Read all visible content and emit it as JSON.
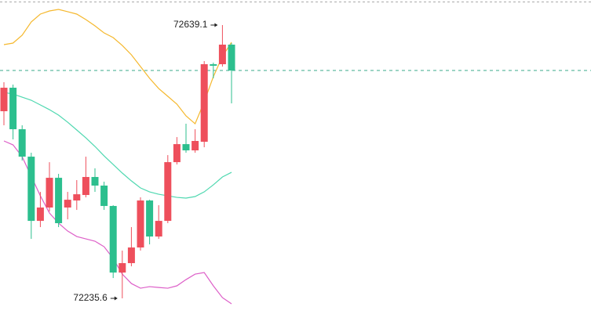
{
  "chart_data": {
    "type": "candlestick",
    "up_color": "#ee4f5c",
    "down_color": "#2cbf8e",
    "ylim": [
      72212.5,
      72676.1
    ],
    "open": [
      72511.9,
      72546.6,
      72485.3,
      72444.8,
      72350.0,
      72369.7,
      72413.6,
      72369.7,
      72380.1,
      72388.2,
      72414.8,
      72402.1,
      72372.0,
      72273.7,
      72287.6,
      72310.7,
      72380.1,
      72326.9,
      72350.0,
      72436.7,
      72463.3,
      72454.1,
      72466.8,
      72581.3,
      72581.3,
      72610.2
    ],
    "high": [
      72554.7,
      72551.2,
      72491.1,
      72450.6,
      72392.8,
      72436.7,
      72419.4,
      72392.8,
      72410.2,
      72444.8,
      72427.5,
      72407.8,
      72373.1,
      72306.1,
      72340.8,
      72384.7,
      72381.2,
      72373.1,
      72447.1,
      72473.7,
      72493.4,
      72485.3,
      72585.9,
      72583.6,
      72639.1,
      72612.5
    ],
    "low": [
      72491.1,
      72470.3,
      72439.1,
      72323.4,
      72340.8,
      72363.9,
      72340.8,
      72352.3,
      72366.2,
      72384.7,
      72392.8,
      72366.2,
      72265.6,
      72235.6,
      72282.9,
      72306.1,
      72315.3,
      72323.4,
      72346.6,
      72433.3,
      72450.6,
      72450.6,
      72458.7,
      72560.5,
      72577.8,
      72523.5
    ],
    "close": [
      72546.6,
      72485.3,
      72444.8,
      72350.0,
      72369.7,
      72413.6,
      72346.6,
      72381.2,
      72389.3,
      72414.8,
      72402.1,
      72372.0,
      72273.7,
      72287.6,
      72310.7,
      72380.1,
      72326.9,
      72350.0,
      72436.7,
      72463.3,
      72454.1,
      72468.0,
      72581.3,
      72579.0,
      72610.2,
      72572.0
    ],
    "lines": [
      {
        "color": "#f5b82e",
        "values": [
          72610.2,
          72612.5,
          72624.1,
          72643.7,
          72655.3,
          72659.9,
          72662.2,
          72658.8,
          72655.3,
          72647.2,
          72637.9,
          72627.5,
          72620.6,
          72609.0,
          72595.2,
          72577.8,
          72560.5,
          72545.4,
          72533.9,
          72522.3,
          72505.0,
          72493.4,
          72525.8,
          72562.8,
          72592.8,
          72613.7
        ]
      },
      {
        "color": "#4fd8b0",
        "values": [
          72539.7,
          72537.3,
          72532.7,
          72528.1,
          72521.2,
          72514.2,
          72506.1,
          72495.7,
          72484.2,
          72472.6,
          72459.9,
          72446.0,
          72433.3,
          72420.6,
          72409.0,
          72398.6,
          72392.8,
          72389.3,
          72387.0,
          72384.7,
          72383.6,
          72385.9,
          72392.8,
          72403.2,
          72414.8,
          72421.7
        ]
      },
      {
        "color": "#dd5fc8",
        "values": [
          72468.0,
          72462.2,
          72444.8,
          72415.9,
          72387.0,
          72361.6,
          72346.6,
          72335.0,
          72326.9,
          72323.4,
          72320.0,
          72311.9,
          72294.5,
          72271.4,
          72257.5,
          72250.6,
          72252.9,
          72251.7,
          72250.6,
          72254.1,
          72263.3,
          72271.4,
          72273.7,
          72254.1,
          72236.7,
          72227.5
        ]
      }
    ],
    "last_price_line_color": "#3aa88a",
    "annotations": [
      {
        "text": "72639.1"
      },
      {
        "text": "72235.6"
      }
    ]
  }
}
